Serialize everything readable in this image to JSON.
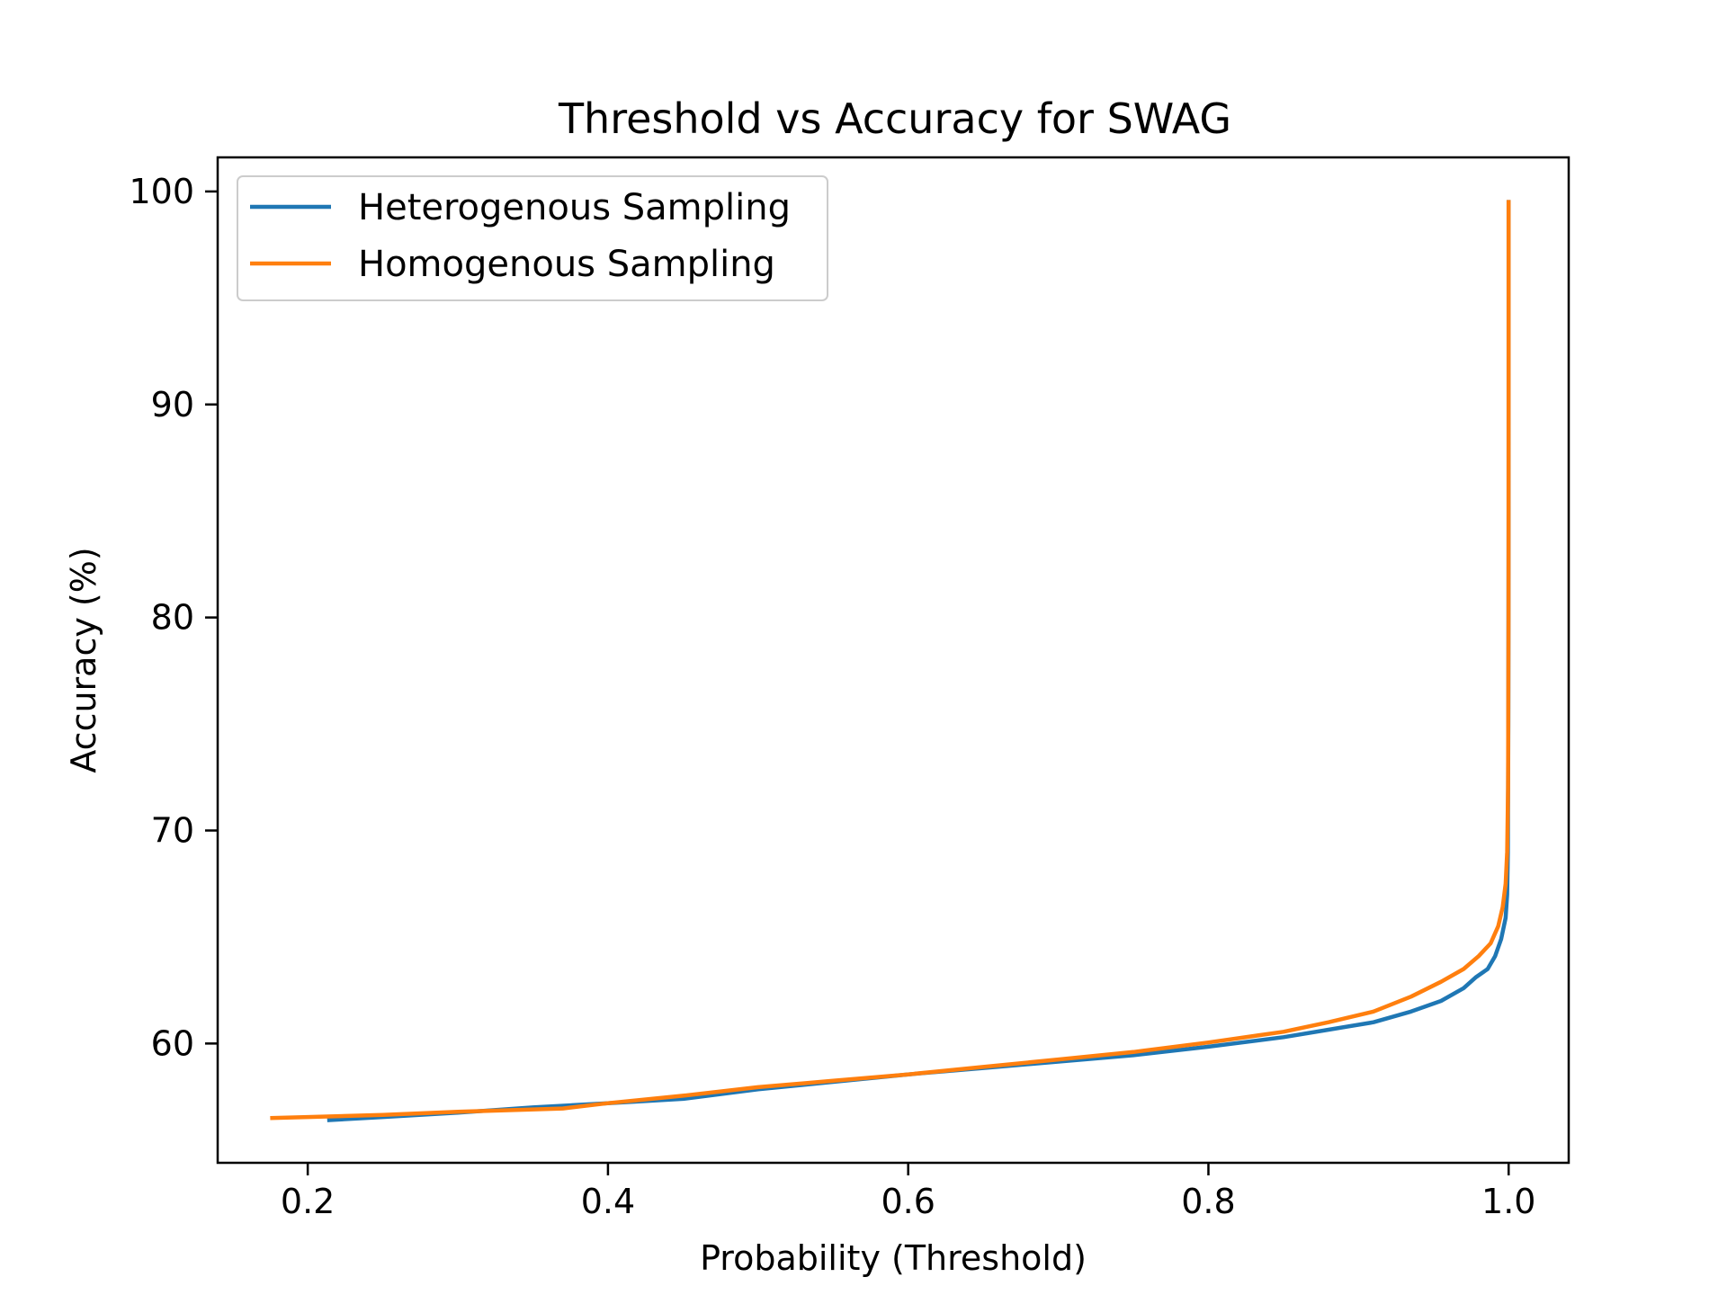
{
  "chart_data": {
    "type": "line",
    "title": "Threshold vs Accuracy for SWAG",
    "xlabel": "Probability (Threshold)",
    "ylabel": "Accuracy (%)",
    "xlim": [
      0.14,
      1.04
    ],
    "ylim": [
      54.4,
      101.6
    ],
    "x_ticks": [
      0.2,
      0.4,
      0.6,
      0.8,
      1.0
    ],
    "x_tick_labels": [
      "0.2",
      "0.4",
      "0.6",
      "0.8",
      "1.0"
    ],
    "y_ticks": [
      60,
      70,
      80,
      90,
      100
    ],
    "y_tick_labels": [
      "60",
      "70",
      "80",
      "90",
      "100"
    ],
    "grid": false,
    "legend_position": "top-left",
    "series": [
      {
        "name": "Heterogenous Sampling",
        "color": "#1f77b4",
        "points": [
          [
            0.213,
            56.4
          ],
          [
            0.25,
            56.55
          ],
          [
            0.3,
            56.75
          ],
          [
            0.35,
            57.0
          ],
          [
            0.4,
            57.2
          ],
          [
            0.45,
            57.4
          ],
          [
            0.5,
            57.85
          ],
          [
            0.55,
            58.2
          ],
          [
            0.6,
            58.55
          ],
          [
            0.65,
            58.85
          ],
          [
            0.7,
            59.15
          ],
          [
            0.75,
            59.45
          ],
          [
            0.8,
            59.85
          ],
          [
            0.85,
            60.3
          ],
          [
            0.88,
            60.65
          ],
          [
            0.91,
            61.0
          ],
          [
            0.935,
            61.5
          ],
          [
            0.955,
            62.0
          ],
          [
            0.97,
            62.6
          ],
          [
            0.978,
            63.1
          ],
          [
            0.986,
            63.5
          ],
          [
            0.991,
            64.1
          ],
          [
            0.995,
            64.9
          ],
          [
            0.998,
            65.9
          ],
          [
            0.999,
            67.0
          ],
          [
            0.9995,
            69.0
          ],
          [
            0.9998,
            75.0
          ],
          [
            1.0,
            85.0
          ],
          [
            1.0,
            99.6
          ]
        ]
      },
      {
        "name": "Homogenous Sampling",
        "color": "#ff7f0e",
        "points": [
          [
            0.175,
            56.5
          ],
          [
            0.2,
            56.55
          ],
          [
            0.25,
            56.65
          ],
          [
            0.3,
            56.8
          ],
          [
            0.37,
            56.95
          ],
          [
            0.4,
            57.2
          ],
          [
            0.45,
            57.55
          ],
          [
            0.5,
            57.95
          ],
          [
            0.55,
            58.25
          ],
          [
            0.6,
            58.55
          ],
          [
            0.65,
            58.9
          ],
          [
            0.7,
            59.25
          ],
          [
            0.75,
            59.6
          ],
          [
            0.8,
            60.05
          ],
          [
            0.85,
            60.55
          ],
          [
            0.88,
            61.0
          ],
          [
            0.91,
            61.5
          ],
          [
            0.935,
            62.2
          ],
          [
            0.955,
            62.9
          ],
          [
            0.97,
            63.5
          ],
          [
            0.98,
            64.1
          ],
          [
            0.988,
            64.7
          ],
          [
            0.993,
            65.5
          ],
          [
            0.996,
            66.4
          ],
          [
            0.998,
            67.5
          ],
          [
            0.999,
            69.0
          ],
          [
            0.9996,
            72.0
          ],
          [
            0.9999,
            80.0
          ],
          [
            1.0,
            90.0
          ],
          [
            1.0,
            99.6
          ]
        ]
      }
    ]
  }
}
